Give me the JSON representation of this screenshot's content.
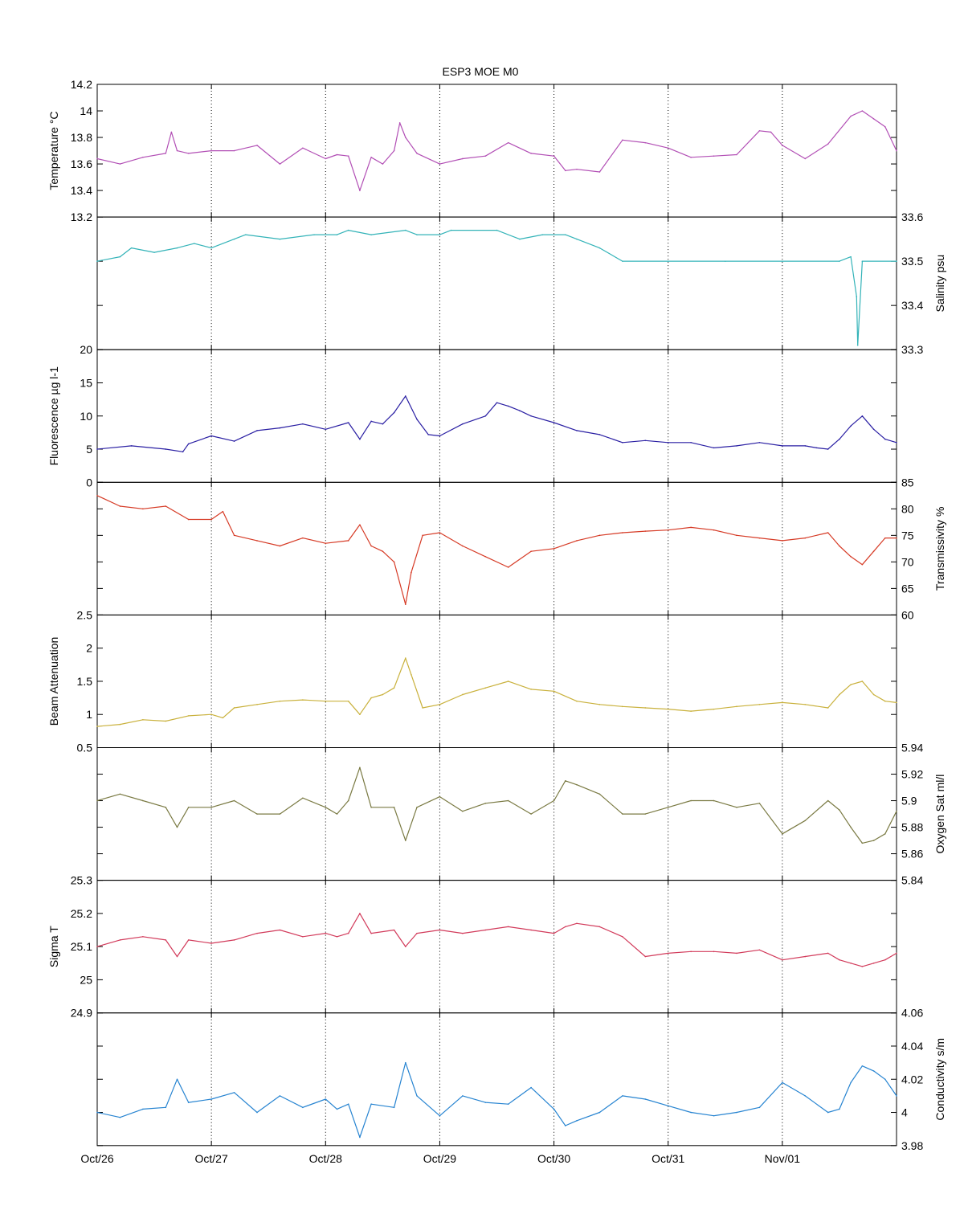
{
  "figure_title": "ESP3 MOE   M0",
  "x_ticks": [
    "Oct/26",
    "Oct/27",
    "Oct/28",
    "Oct/29",
    "Oct/30",
    "Oct/31",
    "Nov/01"
  ],
  "chart_data": [
    {
      "type": "line",
      "title": "ESP3 MOE   M0",
      "ylabel": "Temperature °C",
      "y_axis_side": "left",
      "color": "#b24fb5",
      "ylim": [
        13.2,
        14.2
      ],
      "yticks": [
        13.2,
        13.4,
        13.6,
        13.8,
        14,
        14.2
      ],
      "x_unit": "days since Oct/26",
      "xlim": [
        0,
        7
      ],
      "series": [
        {
          "x": [
            0,
            0.2,
            0.4,
            0.6,
            0.65,
            0.7,
            0.8,
            1.0,
            1.2,
            1.4,
            1.6,
            1.8,
            2.0,
            2.1,
            2.2,
            2.3,
            2.4,
            2.5,
            2.6,
            2.65,
            2.7,
            2.8,
            3.0,
            3.2,
            3.4,
            3.6,
            3.8,
            4.0,
            4.1,
            4.2,
            4.4,
            4.6,
            4.8,
            5.0,
            5.2,
            5.4,
            5.6,
            5.8,
            5.9,
            6.0,
            6.2,
            6.4,
            6.6,
            6.7,
            6.8,
            6.9,
            7.0
          ],
          "y": [
            13.64,
            13.6,
            13.65,
            13.68,
            13.84,
            13.7,
            13.68,
            13.7,
            13.7,
            13.74,
            13.6,
            13.72,
            13.64,
            13.67,
            13.66,
            13.4,
            13.65,
            13.6,
            13.7,
            13.91,
            13.8,
            13.68,
            13.6,
            13.64,
            13.66,
            13.76,
            13.68,
            13.66,
            13.55,
            13.56,
            13.54,
            13.78,
            13.76,
            13.72,
            13.65,
            13.66,
            13.67,
            13.85,
            13.84,
            13.74,
            13.64,
            13.75,
            13.96,
            14.0,
            13.94,
            13.88,
            13.7
          ]
        }
      ]
    },
    {
      "type": "line",
      "ylabel": "Salinity psu",
      "y_axis_side": "right",
      "color": "#33b3b8",
      "ylim": [
        33.3,
        33.6
      ],
      "yticks": [
        33.3,
        33.4,
        33.5,
        33.6
      ],
      "x_unit": "days since Oct/26",
      "xlim": [
        0,
        7
      ],
      "series": [
        {
          "x": [
            0,
            0.2,
            0.3,
            0.5,
            0.7,
            0.85,
            1.0,
            1.2,
            1.3,
            1.6,
            1.9,
            2.1,
            2.2,
            2.4,
            2.7,
            2.8,
            3.0,
            3.1,
            3.5,
            3.7,
            3.9,
            4.1,
            4.2,
            4.4,
            4.6,
            5.0,
            5.5,
            6.0,
            6.5,
            6.6,
            6.65,
            6.66,
            6.7,
            7.0
          ],
          "y": [
            33.5,
            33.51,
            33.53,
            33.52,
            33.53,
            33.54,
            33.53,
            33.55,
            33.56,
            33.55,
            33.56,
            33.56,
            33.57,
            33.56,
            33.57,
            33.56,
            33.56,
            33.57,
            33.57,
            33.55,
            33.56,
            33.56,
            33.55,
            33.53,
            33.5,
            33.5,
            33.5,
            33.5,
            33.5,
            33.51,
            33.42,
            33.31,
            33.5,
            33.5
          ]
        }
      ]
    },
    {
      "type": "line",
      "ylabel": "Fluorescence µg l-1",
      "y_axis_side": "left",
      "color": "#2a1fa3",
      "ylim": [
        0,
        20
      ],
      "yticks": [
        0,
        5,
        10,
        15,
        20
      ],
      "x_unit": "days since Oct/26",
      "xlim": [
        0,
        7
      ],
      "series": [
        {
          "x": [
            0,
            0.3,
            0.6,
            0.75,
            0.8,
            1.0,
            1.2,
            1.4,
            1.6,
            1.8,
            2.0,
            2.2,
            2.3,
            2.4,
            2.5,
            2.6,
            2.7,
            2.8,
            2.9,
            3.0,
            3.2,
            3.4,
            3.5,
            3.6,
            3.7,
            3.8,
            4.0,
            4.2,
            4.4,
            4.6,
            4.8,
            5.0,
            5.2,
            5.4,
            5.6,
            5.8,
            6.0,
            6.2,
            6.3,
            6.4,
            6.5,
            6.6,
            6.7,
            6.8,
            6.9,
            7.0
          ],
          "y": [
            5,
            5.5,
            5.0,
            4.6,
            5.8,
            7.0,
            6.2,
            7.8,
            8.2,
            8.8,
            8.0,
            9.0,
            6.5,
            9.2,
            8.8,
            10.5,
            13.0,
            9.5,
            7.2,
            7.0,
            8.8,
            10.0,
            12.0,
            11.5,
            10.8,
            10.0,
            9.0,
            7.8,
            7.2,
            6.0,
            6.3,
            6.0,
            6.0,
            5.2,
            5.5,
            6.0,
            5.5,
            5.5,
            5.2,
            5.0,
            6.5,
            8.5,
            10.0,
            8.0,
            6.5,
            6.0
          ]
        }
      ]
    },
    {
      "type": "line",
      "ylabel": "Transmissivity %",
      "y_axis_side": "right",
      "color": "#d63b26",
      "ylim": [
        60,
        85
      ],
      "yticks": [
        60,
        65,
        70,
        75,
        80,
        85
      ],
      "x_unit": "days since Oct/26",
      "xlim": [
        0,
        7
      ],
      "series": [
        {
          "x": [
            0,
            0.2,
            0.4,
            0.6,
            0.8,
            1.0,
            1.1,
            1.2,
            1.4,
            1.6,
            1.8,
            2.0,
            2.2,
            2.3,
            2.4,
            2.5,
            2.6,
            2.7,
            2.75,
            2.85,
            3.0,
            3.2,
            3.4,
            3.6,
            3.8,
            4.0,
            4.2,
            4.4,
            4.6,
            4.8,
            5.0,
            5.2,
            5.4,
            5.6,
            5.8,
            6.0,
            6.2,
            6.4,
            6.5,
            6.6,
            6.7,
            6.8,
            6.9,
            7.0
          ],
          "y": [
            82.5,
            80.5,
            80.0,
            80.5,
            78.0,
            78.0,
            79.5,
            75.0,
            74.0,
            73.0,
            74.5,
            73.5,
            74.0,
            77.0,
            73.0,
            72.0,
            70.0,
            62.0,
            68.0,
            75.0,
            75.5,
            73.0,
            71.0,
            69.0,
            72.0,
            72.5,
            74.0,
            75.0,
            75.5,
            75.8,
            76.0,
            76.5,
            76.0,
            75.0,
            74.5,
            74.0,
            74.5,
            75.5,
            73.0,
            71.0,
            69.5,
            72.0,
            74.5,
            74.5
          ]
        }
      ]
    },
    {
      "type": "line",
      "ylabel": "Beam Attenuation",
      "y_axis_side": "left",
      "color": "#c9b13c",
      "ylim": [
        0.5,
        2.5
      ],
      "yticks": [
        0.5,
        1,
        1.5,
        2,
        2.5
      ],
      "x_unit": "days since Oct/26",
      "xlim": [
        0,
        7
      ],
      "series": [
        {
          "x": [
            0,
            0.2,
            0.4,
            0.6,
            0.8,
            1.0,
            1.1,
            1.2,
            1.4,
            1.6,
            1.8,
            2.0,
            2.2,
            2.3,
            2.4,
            2.5,
            2.6,
            2.7,
            2.75,
            2.85,
            3.0,
            3.2,
            3.4,
            3.6,
            3.8,
            4.0,
            4.2,
            4.4,
            4.6,
            4.8,
            5.0,
            5.2,
            5.4,
            5.6,
            5.8,
            6.0,
            6.2,
            6.4,
            6.5,
            6.6,
            6.7,
            6.8,
            6.9,
            7.0
          ],
          "y": [
            0.82,
            0.85,
            0.92,
            0.9,
            0.98,
            1.0,
            0.95,
            1.1,
            1.15,
            1.2,
            1.22,
            1.2,
            1.2,
            1.0,
            1.25,
            1.3,
            1.4,
            1.85,
            1.6,
            1.1,
            1.15,
            1.3,
            1.4,
            1.5,
            1.38,
            1.35,
            1.2,
            1.15,
            1.12,
            1.1,
            1.08,
            1.05,
            1.08,
            1.12,
            1.15,
            1.18,
            1.15,
            1.1,
            1.3,
            1.45,
            1.5,
            1.3,
            1.2,
            1.18
          ]
        }
      ]
    },
    {
      "type": "line",
      "ylabel": "Oxygen Sat ml/l",
      "y_axis_side": "right",
      "color": "#7a7a43",
      "ylim": [
        5.84,
        5.94
      ],
      "yticks": [
        5.84,
        5.86,
        5.88,
        5.9,
        5.92,
        5.94
      ],
      "x_unit": "days since Oct/26",
      "xlim": [
        0,
        7
      ],
      "series": [
        {
          "x": [
            0,
            0.2,
            0.4,
            0.6,
            0.7,
            0.8,
            1.0,
            1.2,
            1.4,
            1.6,
            1.8,
            2.0,
            2.1,
            2.2,
            2.3,
            2.4,
            2.6,
            2.7,
            2.8,
            3.0,
            3.2,
            3.4,
            3.6,
            3.8,
            4.0,
            4.1,
            4.2,
            4.4,
            4.6,
            4.8,
            5.0,
            5.2,
            5.4,
            5.6,
            5.8,
            6.0,
            6.2,
            6.4,
            6.5,
            6.6,
            6.7,
            6.8,
            6.9,
            7.0
          ],
          "y": [
            5.9,
            5.905,
            5.9,
            5.895,
            5.88,
            5.895,
            5.895,
            5.9,
            5.89,
            5.89,
            5.902,
            5.895,
            5.89,
            5.9,
            5.925,
            5.895,
            5.895,
            5.87,
            5.895,
            5.903,
            5.892,
            5.898,
            5.9,
            5.89,
            5.9,
            5.915,
            5.912,
            5.905,
            5.89,
            5.89,
            5.895,
            5.9,
            5.9,
            5.895,
            5.898,
            5.875,
            5.885,
            5.9,
            5.893,
            5.88,
            5.868,
            5.87,
            5.875,
            5.892
          ]
        }
      ]
    },
    {
      "type": "line",
      "ylabel": "Sigma T",
      "y_axis_side": "left",
      "color": "#d23b5b",
      "ylim": [
        24.9,
        25.3
      ],
      "yticks": [
        24.9,
        25,
        25.1,
        25.2,
        25.3
      ],
      "x_unit": "days since Oct/26",
      "xlim": [
        0,
        7
      ],
      "series": [
        {
          "x": [
            0,
            0.2,
            0.4,
            0.6,
            0.7,
            0.8,
            1.0,
            1.2,
            1.4,
            1.6,
            1.8,
            2.0,
            2.1,
            2.2,
            2.3,
            2.4,
            2.6,
            2.7,
            2.8,
            3.0,
            3.2,
            3.4,
            3.6,
            3.8,
            4.0,
            4.1,
            4.2,
            4.4,
            4.6,
            4.8,
            5.0,
            5.2,
            5.4,
            5.6,
            5.8,
            6.0,
            6.2,
            6.4,
            6.5,
            6.6,
            6.7,
            6.8,
            6.9,
            7.0
          ],
          "y": [
            25.1,
            25.12,
            25.13,
            25.12,
            25.07,
            25.12,
            25.11,
            25.12,
            25.14,
            25.15,
            25.13,
            25.14,
            25.13,
            25.14,
            25.2,
            25.14,
            25.15,
            25.1,
            25.14,
            25.15,
            25.14,
            25.15,
            25.16,
            25.15,
            25.14,
            25.16,
            25.17,
            25.16,
            25.13,
            25.07,
            25.08,
            25.085,
            25.085,
            25.08,
            25.09,
            25.06,
            25.07,
            25.08,
            25.06,
            25.05,
            25.04,
            25.05,
            25.06,
            25.08
          ]
        }
      ]
    },
    {
      "type": "line",
      "ylabel": "Conductivity s/m",
      "y_axis_side": "right",
      "color": "#2784d1",
      "ylim": [
        3.98,
        4.06
      ],
      "yticks": [
        3.98,
        4,
        4.02,
        4.04,
        4.06
      ],
      "x_unit": "days since Oct/26",
      "xlim": [
        0,
        7
      ],
      "series": [
        {
          "x": [
            0,
            0.2,
            0.4,
            0.6,
            0.7,
            0.8,
            1.0,
            1.2,
            1.4,
            1.6,
            1.8,
            2.0,
            2.1,
            2.2,
            2.3,
            2.4,
            2.6,
            2.7,
            2.8,
            3.0,
            3.2,
            3.4,
            3.6,
            3.8,
            4.0,
            4.1,
            4.2,
            4.4,
            4.6,
            4.8,
            5.0,
            5.2,
            5.4,
            5.6,
            5.8,
            6.0,
            6.2,
            6.4,
            6.5,
            6.6,
            6.7,
            6.8,
            6.9,
            7.0
          ],
          "y": [
            4.0,
            3.997,
            4.002,
            4.003,
            4.02,
            4.006,
            4.008,
            4.012,
            4.0,
            4.01,
            4.003,
            4.008,
            4.002,
            4.005,
            3.985,
            4.005,
            4.003,
            4.03,
            4.01,
            3.998,
            4.01,
            4.006,
            4.005,
            4.015,
            4.002,
            3.992,
            3.995,
            4.0,
            4.01,
            4.008,
            4.004,
            4.0,
            3.998,
            4.0,
            4.003,
            4.018,
            4.01,
            4.0,
            4.002,
            4.018,
            4.028,
            4.025,
            4.02,
            4.01
          ]
        }
      ]
    }
  ]
}
